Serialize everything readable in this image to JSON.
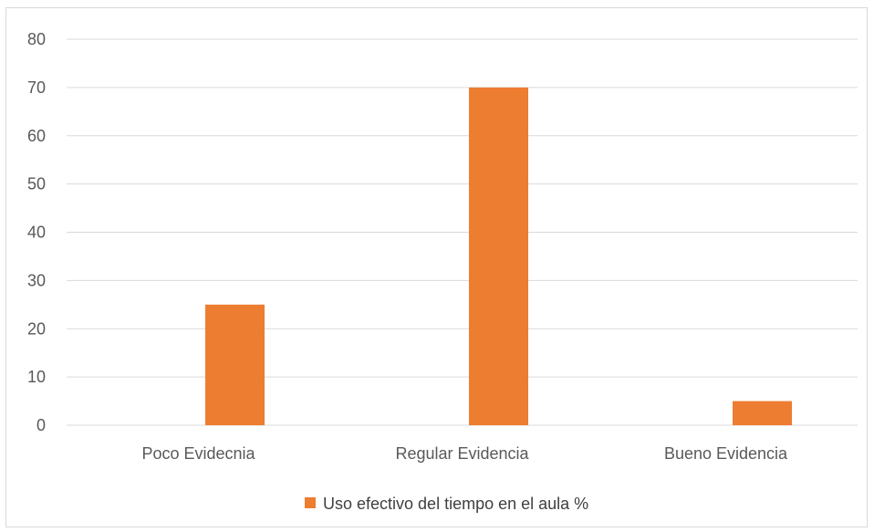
{
  "chart_data": {
    "type": "bar",
    "categories": [
      "Poco  Evidecnia",
      "Regular Evidencia",
      "Bueno Evidencia"
    ],
    "series": [
      {
        "name": "Uso efectivo del tiempo en el aula %",
        "values": [
          25,
          70,
          5
        ],
        "color": "#ED7D31"
      }
    ],
    "ylim": [
      0,
      80
    ],
    "yticks": [
      0,
      10,
      20,
      30,
      40,
      50,
      60,
      70,
      80
    ],
    "grid": true,
    "legend_position": "bottom"
  }
}
